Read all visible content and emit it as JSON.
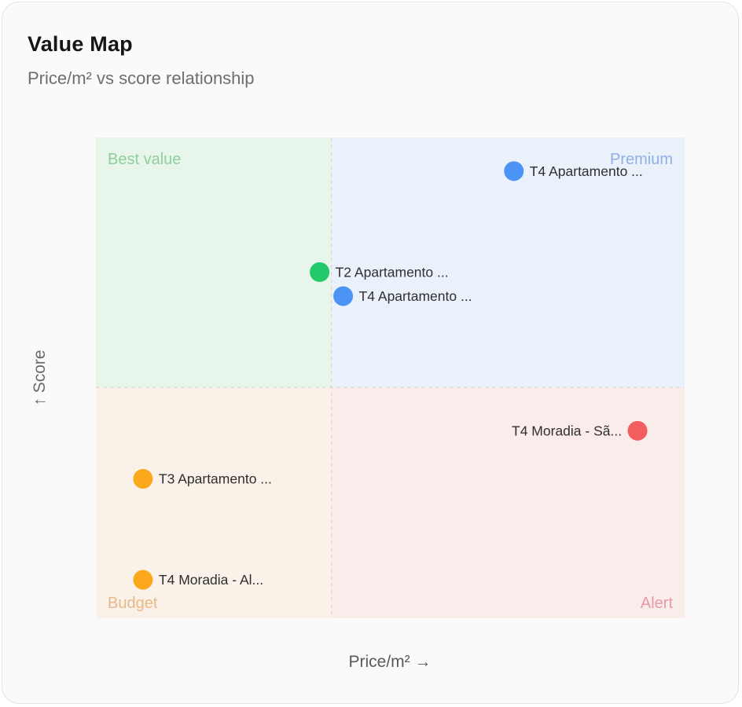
{
  "chart_data": {
    "type": "scatter",
    "title": "Value Map",
    "subtitle": "Price/m² vs score relationship",
    "xlabel": "Price/m² →",
    "ylabel": "↑ Score",
    "xlim": [
      0,
      100
    ],
    "ylim": [
      0,
      100
    ],
    "x_divider": 40,
    "y_divider": 48,
    "grid": false,
    "quadrants": [
      {
        "key": "best",
        "label": "Best value",
        "fill": "#e8f5ea",
        "text_color": "#8fcf9c"
      },
      {
        "key": "premium",
        "label": "Premium",
        "fill": "#ebf1fb",
        "text_color": "#8fb0e6"
      },
      {
        "key": "budget",
        "label": "Budget",
        "fill": "#faf1e8",
        "text_color": "#e9b98a"
      },
      {
        "key": "alert",
        "label": "Alert",
        "fill": "#fbecec",
        "text_color": "#e59aa4"
      }
    ],
    "points": [
      {
        "label": "T4 Apartamento ...",
        "x": 71,
        "y": 93,
        "color": "#4b94f5",
        "label_side": "right"
      },
      {
        "label": "T2 Apartamento ...",
        "x": 38,
        "y": 72,
        "color": "#22c96a",
        "label_side": "right"
      },
      {
        "label": "T4 Apartamento ...",
        "x": 42,
        "y": 67,
        "color": "#4b94f5",
        "label_side": "right"
      },
      {
        "label": "T4 Moradia - Sã...",
        "x": 92,
        "y": 39,
        "color": "#f45d60",
        "label_side": "left"
      },
      {
        "label": "T3 Apartamento ...",
        "x": 8,
        "y": 29,
        "color": "#fba81d",
        "label_side": "right"
      },
      {
        "label": "T4 Moradia - Al...",
        "x": 8,
        "y": 8,
        "color": "#fba81d",
        "label_side": "right"
      }
    ]
  }
}
